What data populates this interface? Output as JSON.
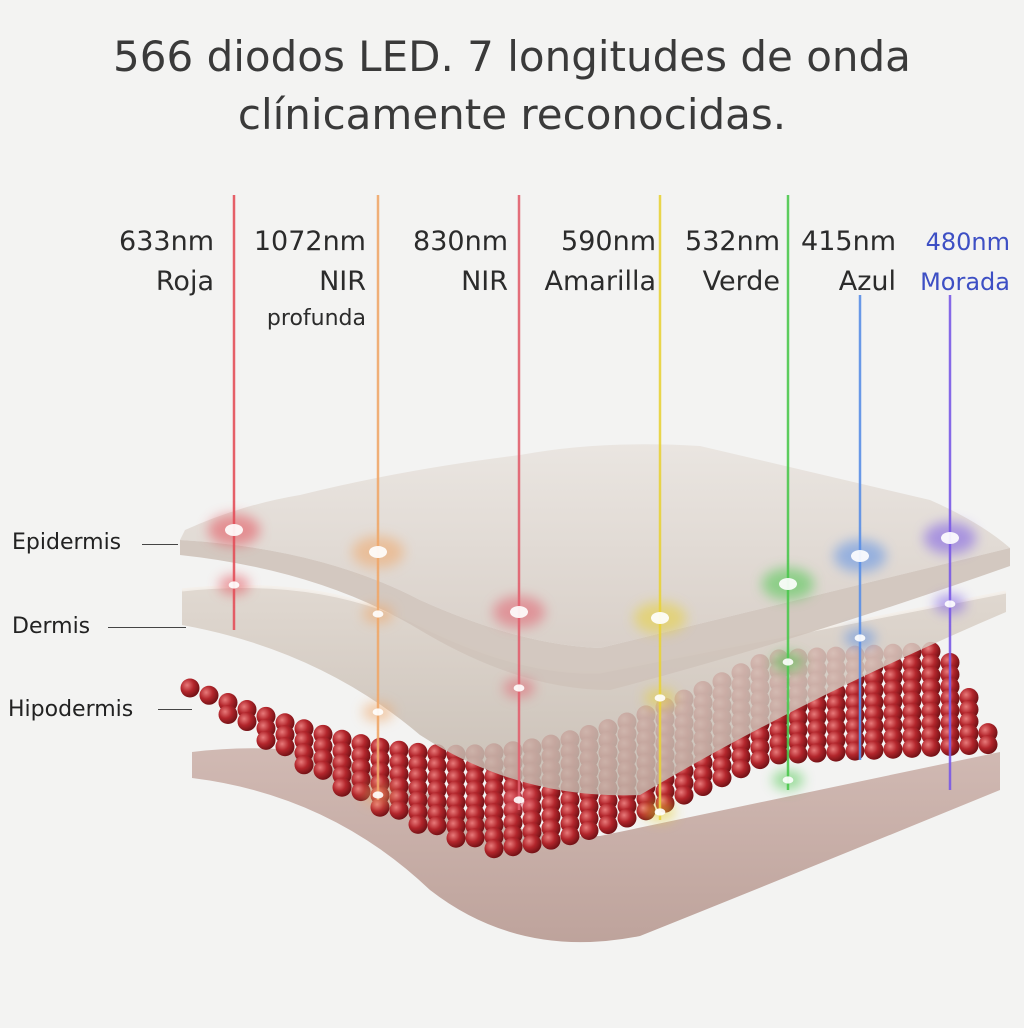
{
  "headline": {
    "line1": "566 diodos LED. 7 longitudes de onda",
    "line2": "clínicamente reconocidas."
  },
  "wavelengths": [
    {
      "nm": "633nm",
      "name": "Roja",
      "extra": "",
      "color": "#e4505a"
    },
    {
      "nm": "1072nm",
      "name": "NIR",
      "extra": "profunda",
      "color": "#f0a86a"
    },
    {
      "nm": "830nm",
      "name": "NIR",
      "extra": "",
      "color": "#e2606e"
    },
    {
      "nm": "590nm",
      "name": "Amarilla",
      "extra": "",
      "color": "#e8d23a"
    },
    {
      "nm": "532nm",
      "name": "Verde",
      "extra": "",
      "color": "#4cc84e"
    },
    {
      "nm": "415nm",
      "name": "Azul",
      "extra": "",
      "color": "#5a8fe6"
    },
    {
      "nm": "480nm",
      "name": "Morada",
      "extra": "",
      "color": "#7a5ae6"
    }
  ],
  "label_colors": {
    "default": "#2b2b2b",
    "accent": "#3d4fc4"
  },
  "layers": [
    {
      "label": "Epidermis"
    },
    {
      "label": "Dermis"
    },
    {
      "label": "Hipodermis"
    }
  ],
  "fat_cell_color": "#b3262c"
}
